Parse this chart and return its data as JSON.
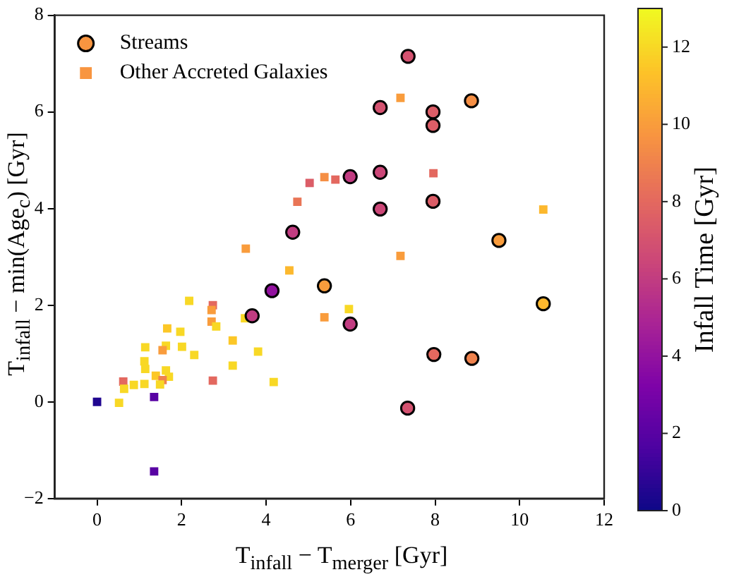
{
  "chart_data": {
    "type": "scatter",
    "xlabel": "T$_{infall}$  −  T$_{merger}$ [Gyr]",
    "ylabel": "T$_{infall}$  −  min(Age$_{c}$) [Gyr]",
    "clabel": "Infall Time [Gyr]",
    "xlim": [
      -1,
      12
    ],
    "ylim": [
      -2,
      8
    ],
    "xticks": [
      0,
      2,
      4,
      6,
      8,
      10,
      12
    ],
    "yticks": [
      -2,
      0,
      2,
      4,
      6,
      8
    ],
    "clim": [
      0,
      13
    ],
    "cticks": [
      0,
      2,
      4,
      6,
      8,
      10,
      12
    ],
    "grid": false,
    "legend": "top left",
    "series": [
      {
        "name": "Streams",
        "marker": "circle",
        "x": [
          7.36,
          6.7,
          7.95,
          7.95,
          8.86,
          5.99,
          6.7,
          7.95,
          6.7,
          9.51,
          4.63,
          5.38,
          4.14,
          3.67,
          5.99,
          10.56,
          7.97,
          8.87,
          7.35
        ],
        "values": [
          7.15,
          6.09,
          6.0,
          5.72,
          6.23,
          4.66,
          4.75,
          4.15,
          3.99,
          3.34,
          3.51,
          2.4,
          2.3,
          1.78,
          1.61,
          2.03,
          0.98,
          0.9,
          -0.13
        ],
        "colors": [
          "#d45270",
          "#d45270",
          "#db5d67",
          "#db5d67",
          "#f58f45",
          "#c13c81",
          "#cc4778",
          "#db5d67",
          "#cc4778",
          "#f99c3c",
          "#c13c81",
          "#f99c3c",
          "#92129f",
          "#c13c81",
          "#c13c81",
          "#fcb82e",
          "#e3685f",
          "#ef824d",
          "#d45270"
        ]
      },
      {
        "name": "Other Accreted Galaxies",
        "marker": "square",
        "x": [
          5.03,
          5.38,
          5.64,
          4.74,
          3.52,
          4.55,
          7.18,
          7.96,
          10.56,
          7.18,
          2.18,
          2.74,
          2.71,
          2.71,
          2.82,
          1.66,
          1.97,
          3.5,
          5.38,
          5.96,
          1.14,
          1.63,
          2.01,
          1.55,
          2.3,
          3.21,
          3.81,
          1.12,
          1.14,
          1.63,
          1.39,
          1.7,
          1.55,
          1.49,
          1.12,
          0.87,
          0.62,
          0.64,
          3.21,
          4.18,
          2.74,
          0,
          0.52,
          1.35,
          1.35
        ],
        "values": [
          4.53,
          4.65,
          4.6,
          4.14,
          3.17,
          2.72,
          6.29,
          4.73,
          3.98,
          3.02,
          2.09,
          2.0,
          1.9,
          1.66,
          1.56,
          1.52,
          1.45,
          1.73,
          1.75,
          1.92,
          1.13,
          1.16,
          1.14,
          1.07,
          0.97,
          1.27,
          1.04,
          0.84,
          0.68,
          0.65,
          0.54,
          0.52,
          0.45,
          0.36,
          0.37,
          0.35,
          0.42,
          0.27,
          0.75,
          0.41,
          0.44,
          0,
          -0.02,
          0.1,
          -1.44
        ],
        "colors": [
          "#db5d67",
          "#f58f45",
          "#e3685f",
          "#e97556",
          "#f99c3c",
          "#fcb82e",
          "#f99c3c",
          "#e3685f",
          "#fcb82e",
          "#f99c3c",
          "#f8d825",
          "#e3685f",
          "#f99c3c",
          "#f99c3c",
          "#f8d825",
          "#fcc727",
          "#f8d825",
          "#f8d825",
          "#f99c3c",
          "#f8d825",
          "#f8d825",
          "#f8d825",
          "#f8d825",
          "#f99c3c",
          "#f8d825",
          "#fcc727",
          "#f8d825",
          "#f8d825",
          "#f8d825",
          "#f8d825",
          "#fcc727",
          "#f8d825",
          "#ef824d",
          "#f8d825",
          "#f8d825",
          "#f8d825",
          "#e3685f",
          "#f8d825",
          "#f8d825",
          "#f8d825",
          "#e3685f",
          "#200690",
          "#f8d825",
          "#5802a3",
          "#5802a3"
        ]
      }
    ]
  }
}
